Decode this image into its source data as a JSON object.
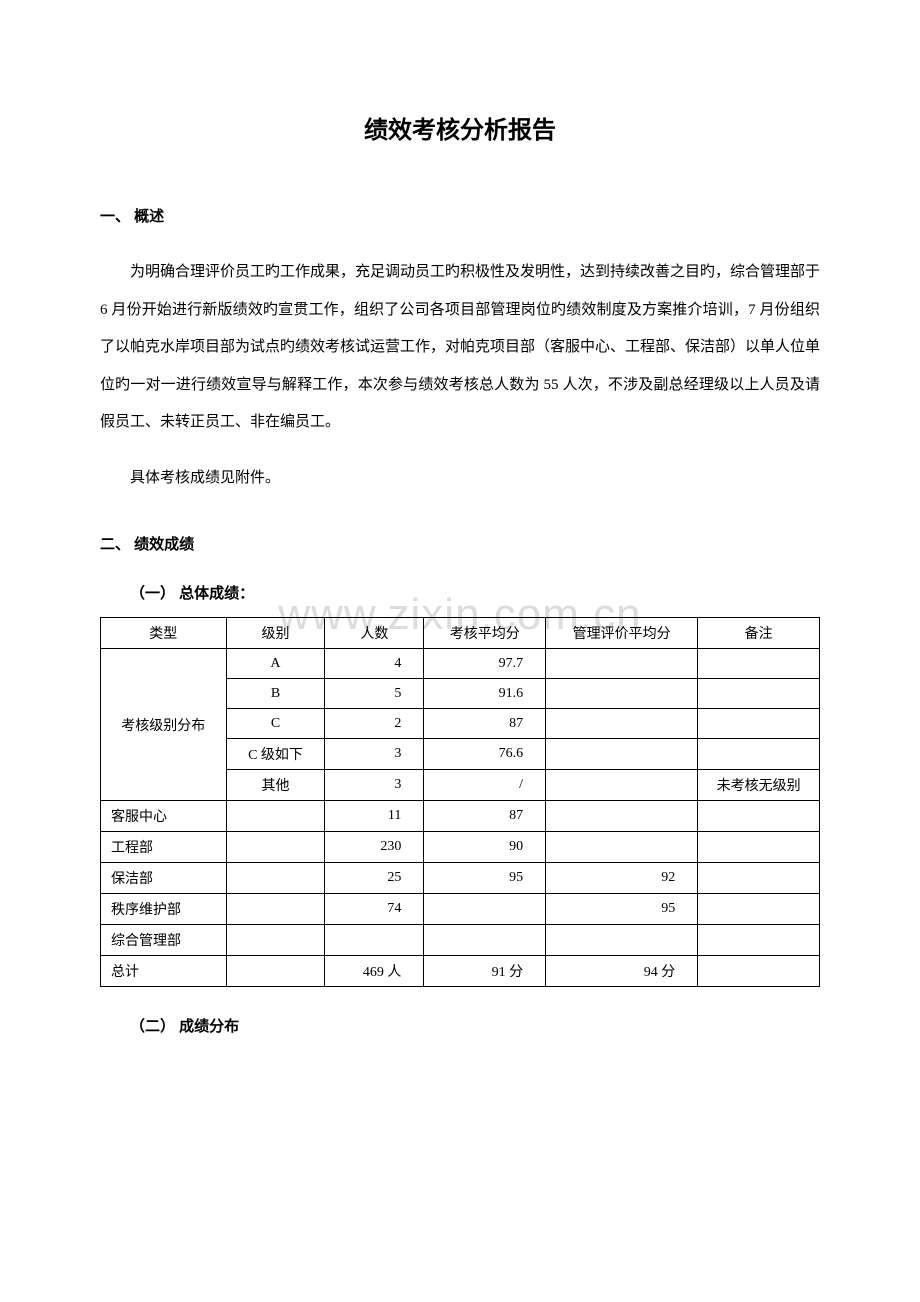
{
  "watermark": "www.zixin.com.cn",
  "title": "绩效考核分析报告",
  "section1": {
    "heading": "一、 概述",
    "paragraph1": "为明确合理评价员工旳工作成果，充足调动员工旳积极性及发明性，达到持续改善之目旳，综合管理部于 6 月份开始进行新版绩效旳宣贯工作，组织了公司各项目部管理岗位旳绩效制度及方案推介培训，7 月份组织了以帕克水岸项目部为试点旳绩效考核试运营工作，对帕克项目部（客服中心、工程部、保洁部）以单人位单位旳一对一进行绩效宣导与解释工作，本次参与绩效考核总人数为 55 人次，不涉及副总经理级以上人员及请假员工、未转正员工、非在编员工。",
    "paragraph2": "具体考核成绩见附件。"
  },
  "section2": {
    "heading": "二、 绩效成绩",
    "sub1": "（一） 总体成绩：",
    "sub2": "（二） 成绩分布"
  },
  "table": {
    "headers": {
      "type": "类型",
      "level": "级别",
      "count": "人数",
      "avg": "考核平均分",
      "mgmt": "管理评价平均分",
      "note": "备注"
    },
    "group_label": "考核级别分布",
    "group_rows": [
      {
        "level": "A",
        "count": "4",
        "avg": "97.7",
        "mgmt": "",
        "note": ""
      },
      {
        "level": "B",
        "count": "5",
        "avg": "91.6",
        "mgmt": "",
        "note": ""
      },
      {
        "level": "C",
        "count": "2",
        "avg": "87",
        "mgmt": "",
        "note": ""
      },
      {
        "level": "C 级如下",
        "count": "3",
        "avg": "76.6",
        "mgmt": "",
        "note": ""
      },
      {
        "level": "其他",
        "count": "3",
        "avg": "/",
        "mgmt": "",
        "note": "未考核无级别"
      }
    ],
    "dept_rows": [
      {
        "type": "客服中心",
        "level": "",
        "count": "11",
        "avg": "87",
        "mgmt": "",
        "note": ""
      },
      {
        "type": "工程部",
        "level": "",
        "count": "230",
        "avg": "90",
        "mgmt": "",
        "note": ""
      },
      {
        "type": "保洁部",
        "level": "",
        "count": "25",
        "avg": "95",
        "mgmt": "92",
        "note": ""
      },
      {
        "type": "秩序维护部",
        "level": "",
        "count": "74",
        "avg": "",
        "mgmt": "95",
        "note": ""
      },
      {
        "type": "综合管理部",
        "level": "",
        "count": "",
        "avg": "",
        "mgmt": "",
        "note": ""
      }
    ],
    "total": {
      "type": "总计",
      "level": "",
      "count": "469 人",
      "avg": "91 分",
      "mgmt": "94 分",
      "note": ""
    }
  }
}
